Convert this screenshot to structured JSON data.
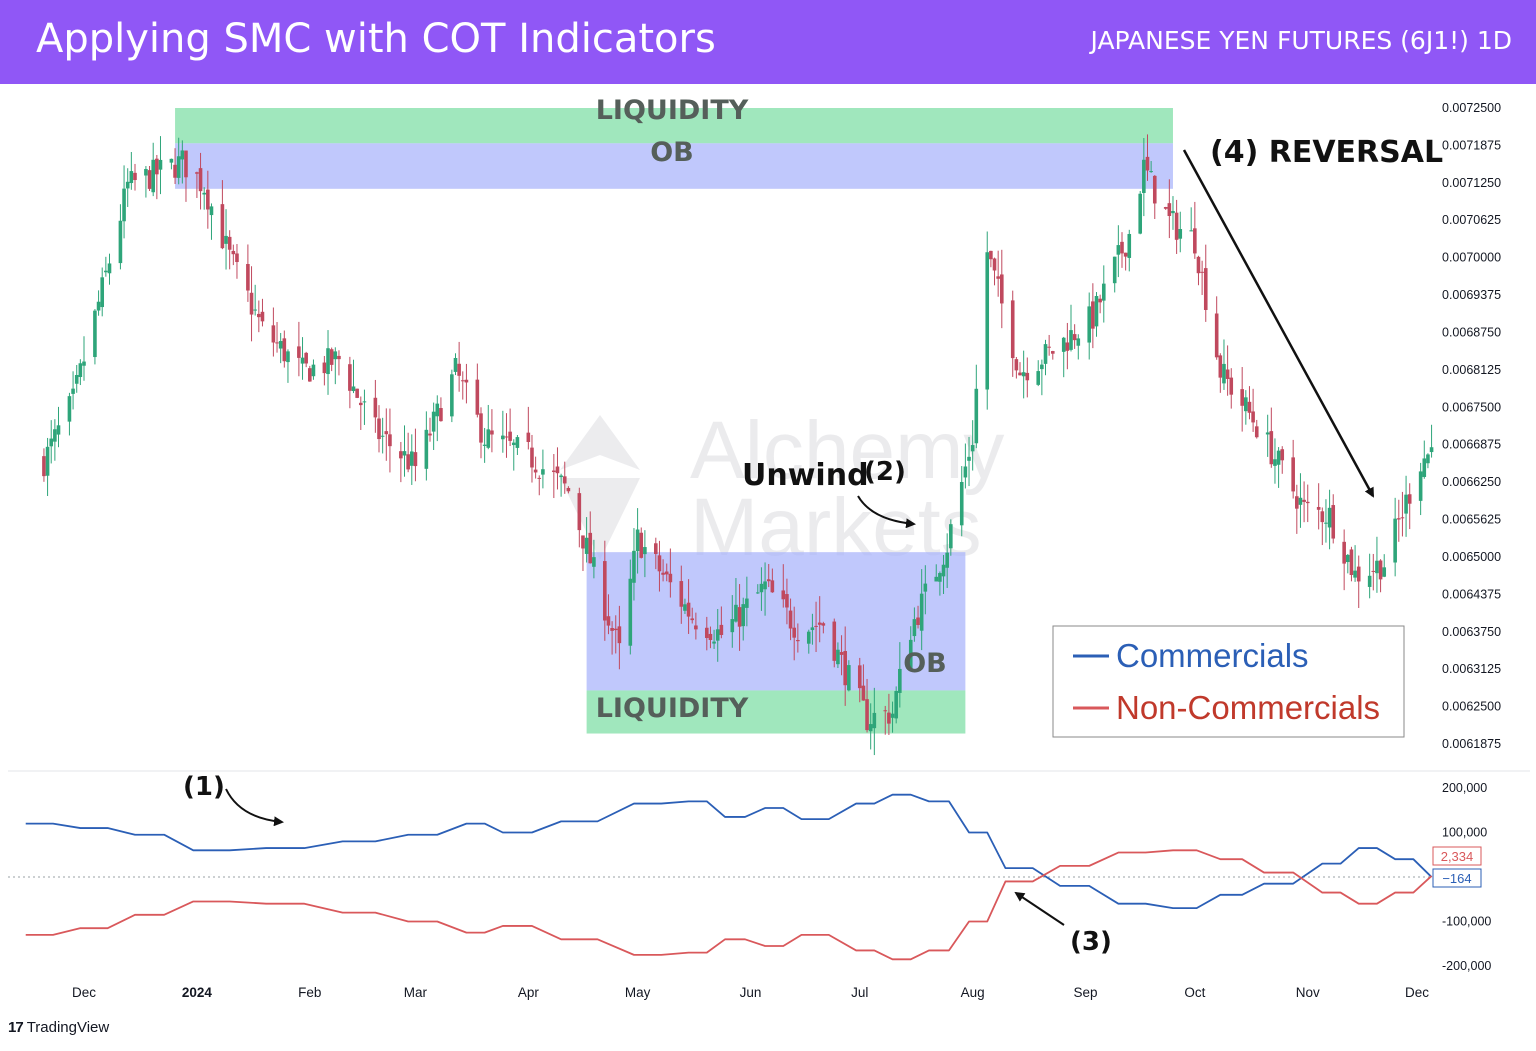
{
  "header": {
    "title": "Applying SMC with COT Indicators",
    "instrument": "JAPANESE YEN FUTURES (6J1!) 1D"
  },
  "footer": {
    "brand": "TradingView",
    "logo_glyph": "17"
  },
  "watermark": {
    "line1": "Alchemy",
    "line2": "Markets"
  },
  "colors": {
    "header_bg": "#9057f6",
    "up": "#2ea57a",
    "down": "#c0495e",
    "commercials": "#2b5fb6",
    "non_commercials": "#d9585b",
    "liquidity_zone": "#8fe3b2",
    "ob_zone": "#a7b3fb"
  },
  "chart_data": [
    {
      "type": "candlestick",
      "title": "",
      "y_axis_ticks": [
        "0.0072500",
        "0.0071875",
        "0.0071250",
        "0.0070625",
        "0.0070000",
        "0.0069375",
        "0.0068750",
        "0.0068125",
        "0.0067500",
        "0.0066875",
        "0.0066250",
        "0.0065625",
        "0.0065000",
        "0.0064375",
        "0.0063750",
        "0.0063125",
        "0.0062500",
        "0.0061875"
      ],
      "ylim": [
        0.00618,
        0.00728
      ],
      "x_axis_ticks": [
        "Dec",
        "2024",
        "Feb",
        "Mar",
        "Apr",
        "May",
        "Jun",
        "Jul",
        "Aug",
        "Sep",
        "Oct",
        "Nov",
        "Dec"
      ],
      "close_path": [
        {
          "date": "2023-11-20",
          "close": 0.00666
        },
        {
          "date": "2023-11-28",
          "close": 0.00676
        },
        {
          "date": "2023-12-07",
          "close": 0.00697
        },
        {
          "date": "2023-12-13",
          "close": 0.00712
        },
        {
          "date": "2023-12-28",
          "close": 0.00716
        },
        {
          "date": "2024-01-03",
          "close": 0.00712
        },
        {
          "date": "2024-01-10",
          "close": 0.007
        },
        {
          "date": "2024-01-19",
          "close": 0.00688
        },
        {
          "date": "2024-01-30",
          "close": 0.00681
        },
        {
          "date": "2024-02-09",
          "close": 0.00683
        },
        {
          "date": "2024-02-19",
          "close": 0.00671
        },
        {
          "date": "2024-03-01",
          "close": 0.00665
        },
        {
          "date": "2024-03-12",
          "close": 0.00681
        },
        {
          "date": "2024-03-20",
          "close": 0.0067
        },
        {
          "date": "2024-04-01",
          "close": 0.00667
        },
        {
          "date": "2024-04-12",
          "close": 0.00661
        },
        {
          "date": "2024-04-26",
          "close": 0.00634
        },
        {
          "date": "2024-05-01",
          "close": 0.00653
        },
        {
          "date": "2024-05-16",
          "close": 0.0064
        },
        {
          "date": "2024-05-24",
          "close": 0.00637
        },
        {
          "date": "2024-06-05",
          "close": 0.00645
        },
        {
          "date": "2024-06-14",
          "close": 0.00638
        },
        {
          "date": "2024-06-21",
          "close": 0.00639
        },
        {
          "date": "2024-07-03",
          "close": 0.00623
        },
        {
          "date": "2024-07-10",
          "close": 0.00624
        },
        {
          "date": "2024-07-15",
          "close": 0.00638
        },
        {
          "date": "2024-07-25",
          "close": 0.00652
        },
        {
          "date": "2024-08-01",
          "close": 0.0067
        },
        {
          "date": "2024-08-05",
          "close": 0.00701
        },
        {
          "date": "2024-08-14",
          "close": 0.00681
        },
        {
          "date": "2024-08-22",
          "close": 0.00684
        },
        {
          "date": "2024-09-03",
          "close": 0.0069
        },
        {
          "date": "2024-09-13",
          "close": 0.00704
        },
        {
          "date": "2024-09-17",
          "close": 0.00715
        },
        {
          "date": "2024-09-24",
          "close": 0.00706
        },
        {
          "date": "2024-10-01",
          "close": 0.00703
        },
        {
          "date": "2024-10-08",
          "close": 0.00681
        },
        {
          "date": "2024-10-17",
          "close": 0.00673
        },
        {
          "date": "2024-10-31",
          "close": 0.00658
        },
        {
          "date": "2024-11-07",
          "close": 0.00657
        },
        {
          "date": "2024-11-14",
          "close": 0.00647
        },
        {
          "date": "2024-11-22",
          "close": 0.00649
        },
        {
          "date": "2024-12-02",
          "close": 0.00666
        },
        {
          "date": "2024-12-05",
          "close": 0.00668
        }
      ],
      "zones": [
        {
          "label": "LIQUIDITY",
          "kind": "liquidity",
          "from": "2023-12-26",
          "to": "2024-09-25",
          "y_low": 0.007191,
          "y_high": 0.00725
        },
        {
          "label": "OB",
          "kind": "order_block",
          "from": "2023-12-26",
          "to": "2024-09-25",
          "y_low": 0.007115,
          "y_high": 0.007191
        },
        {
          "label": "OB",
          "kind": "order_block",
          "from": "2024-04-17",
          "to": "2024-07-30",
          "y_low": 0.006277,
          "y_high": 0.006508
        },
        {
          "label": "LIQUIDITY",
          "kind": "liquidity",
          "from": "2024-04-17",
          "to": "2024-07-30",
          "y_low": 0.006205,
          "y_high": 0.006277
        }
      ],
      "annotations": [
        {
          "label": "Unwind",
          "number": "(2)"
        },
        {
          "label": "(4) REVERSAL"
        }
      ],
      "legend": {
        "position": "bottom-right",
        "entries": [
          "Commercials",
          "Non-Commercials"
        ]
      }
    },
    {
      "type": "line",
      "y_axis_ticks": [
        "200,000",
        "100,000",
        "-100,000",
        "-200,000"
      ],
      "ylim": [
        -230000,
        220000
      ],
      "last_values": {
        "non_commercials": "2,334",
        "commercials": "−164"
      },
      "annotations": [
        "(1)",
        "(3)"
      ],
      "series": [
        {
          "name": "Commercials",
          "points": [
            {
              "date": "2023-11-15",
              "value": 120000
            },
            {
              "date": "2023-11-30",
              "value": 110000
            },
            {
              "date": "2023-12-15",
              "value": 95000
            },
            {
              "date": "2023-12-31",
              "value": 60000
            },
            {
              "date": "2024-01-20",
              "value": 65000
            },
            {
              "date": "2024-02-10",
              "value": 80000
            },
            {
              "date": "2024-02-28",
              "value": 95000
            },
            {
              "date": "2024-03-15",
              "value": 120000
            },
            {
              "date": "2024-03-25",
              "value": 100000
            },
            {
              "date": "2024-04-10",
              "value": 125000
            },
            {
              "date": "2024-04-30",
              "value": 165000
            },
            {
              "date": "2024-05-15",
              "value": 170000
            },
            {
              "date": "2024-05-25",
              "value": 135000
            },
            {
              "date": "2024-06-05",
              "value": 155000
            },
            {
              "date": "2024-06-15",
              "value": 130000
            },
            {
              "date": "2024-06-30",
              "value": 165000
            },
            {
              "date": "2024-07-10",
              "value": 185000
            },
            {
              "date": "2024-07-20",
              "value": 170000
            },
            {
              "date": "2024-07-31",
              "value": 100000
            },
            {
              "date": "2024-08-10",
              "value": 20000
            },
            {
              "date": "2024-08-25",
              "value": -20000
            },
            {
              "date": "2024-09-10",
              "value": -60000
            },
            {
              "date": "2024-09-25",
              "value": -70000
            },
            {
              "date": "2024-10-08",
              "value": -40000
            },
            {
              "date": "2024-10-20",
              "value": -15000
            },
            {
              "date": "2024-11-05",
              "value": 30000
            },
            {
              "date": "2024-11-15",
              "value": 65000
            },
            {
              "date": "2024-11-25",
              "value": 40000
            },
            {
              "date": "2024-12-05",
              "value": -164
            }
          ]
        },
        {
          "name": "Non-Commercials",
          "points": [
            {
              "date": "2023-11-15",
              "value": -130000
            },
            {
              "date": "2023-11-30",
              "value": -115000
            },
            {
              "date": "2023-12-15",
              "value": -85000
            },
            {
              "date": "2023-12-31",
              "value": -55000
            },
            {
              "date": "2024-01-20",
              "value": -60000
            },
            {
              "date": "2024-02-10",
              "value": -80000
            },
            {
              "date": "2024-02-28",
              "value": -100000
            },
            {
              "date": "2024-03-15",
              "value": -125000
            },
            {
              "date": "2024-03-25",
              "value": -110000
            },
            {
              "date": "2024-04-10",
              "value": -140000
            },
            {
              "date": "2024-04-30",
              "value": -175000
            },
            {
              "date": "2024-05-15",
              "value": -170000
            },
            {
              "date": "2024-05-25",
              "value": -140000
            },
            {
              "date": "2024-06-05",
              "value": -155000
            },
            {
              "date": "2024-06-15",
              "value": -130000
            },
            {
              "date": "2024-06-30",
              "value": -165000
            },
            {
              "date": "2024-07-10",
              "value": -185000
            },
            {
              "date": "2024-07-20",
              "value": -165000
            },
            {
              "date": "2024-07-31",
              "value": -100000
            },
            {
              "date": "2024-08-10",
              "value": -10000
            },
            {
              "date": "2024-08-25",
              "value": 25000
            },
            {
              "date": "2024-09-10",
              "value": 55000
            },
            {
              "date": "2024-09-25",
              "value": 60000
            },
            {
              "date": "2024-10-08",
              "value": 40000
            },
            {
              "date": "2024-10-20",
              "value": 10000
            },
            {
              "date": "2024-11-05",
              "value": -35000
            },
            {
              "date": "2024-11-15",
              "value": -60000
            },
            {
              "date": "2024-11-25",
              "value": -35000
            },
            {
              "date": "2024-12-05",
              "value": 2334
            }
          ]
        }
      ]
    }
  ]
}
